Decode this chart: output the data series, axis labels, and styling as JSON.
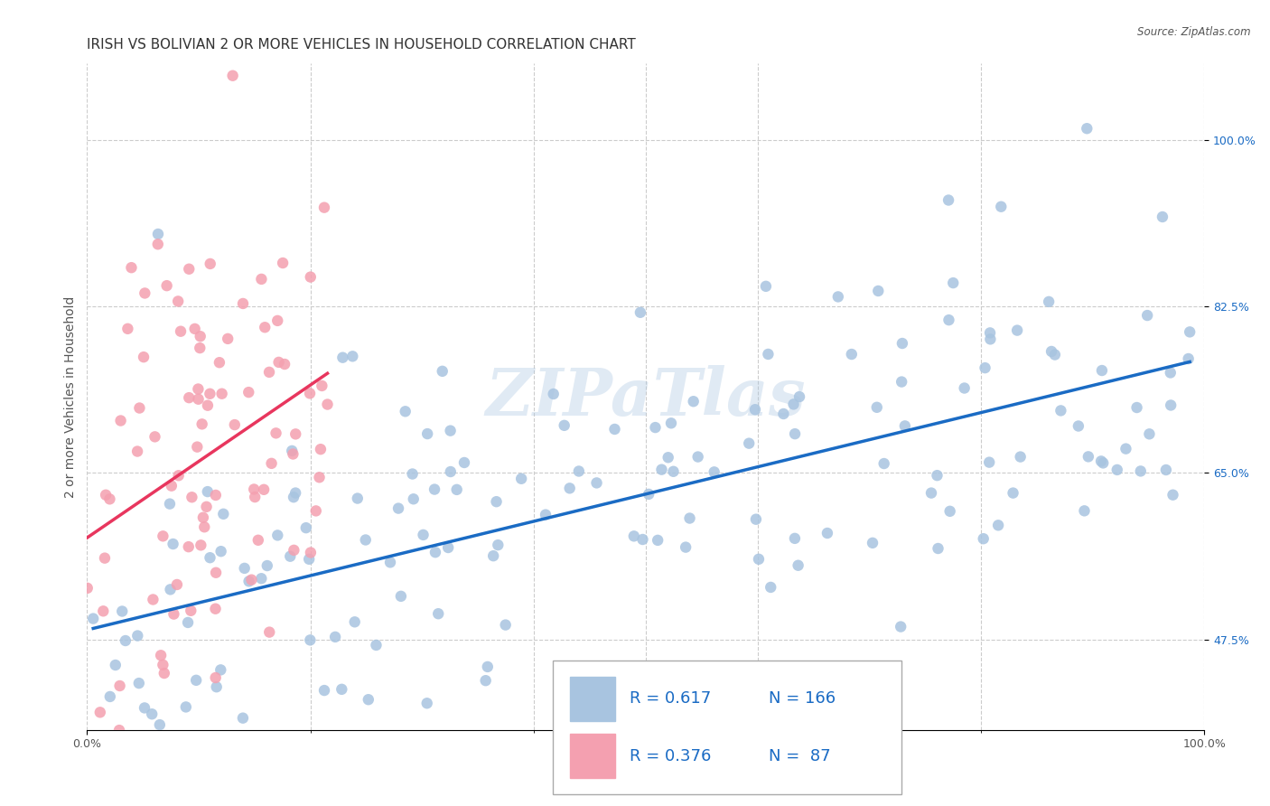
{
  "title": "IRISH VS BOLIVIAN 2 OR MORE VEHICLES IN HOUSEHOLD CORRELATION CHART",
  "source": "Source: ZipAtlas.com",
  "ylabel": "2 or more Vehicles in Household",
  "xlabel": "",
  "xlim": [
    0,
    1
  ],
  "ylim": [
    0,
    1
  ],
  "x_tick_labels": [
    "0.0%",
    "100.0%"
  ],
  "y_tick_labels": [
    "47.5%",
    "65.0%",
    "82.5%",
    "100.0%"
  ],
  "y_tick_positions": [
    0.475,
    0.65,
    0.825,
    1.0
  ],
  "watermark": "ZIPaTlas",
  "irish_color": "#a8c4e0",
  "bolivian_color": "#f4a0b0",
  "irish_line_color": "#1a6bc4",
  "bolivian_line_color": "#e8365e",
  "irish_R": 0.617,
  "irish_N": 166,
  "bolivian_R": 0.376,
  "bolivian_N": 87,
  "irish_seed": 42,
  "bolivian_seed": 7,
  "title_fontsize": 11,
  "axis_label_fontsize": 10,
  "tick_fontsize": 9,
  "legend_fontsize": 12
}
